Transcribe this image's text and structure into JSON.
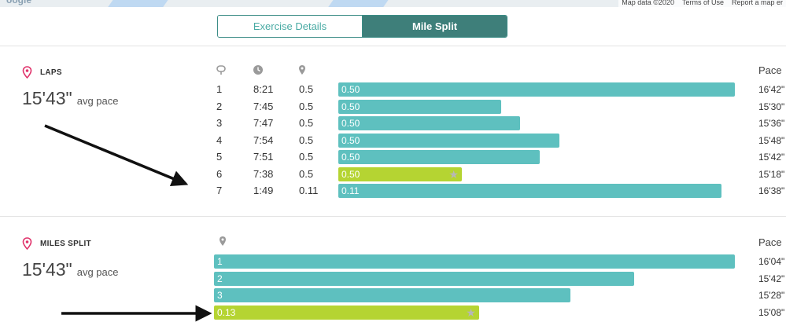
{
  "map": {
    "logo": "oogle",
    "attribution": [
      "Map data ©2020",
      "Terms of Use",
      "Report a map er"
    ]
  },
  "tabs": [
    {
      "label": "Exercise Details",
      "active": false
    },
    {
      "label": "Mile Split",
      "active": true
    }
  ],
  "laps": {
    "title": "LAPS",
    "avg_value": "15'43\"",
    "avg_label": "avg pace",
    "pace_header": "Pace",
    "column_icons": [
      "lap-icon",
      "clock-icon",
      "pin-icon"
    ],
    "rows": [
      {
        "lap": "1",
        "time": "8:21",
        "distance": "0.5",
        "bar_label": "0.50",
        "pace": "16'42\"",
        "pace_seconds": 1002,
        "best": false
      },
      {
        "lap": "2",
        "time": "7:45",
        "distance": "0.5",
        "bar_label": "0.50",
        "pace": "15'30\"",
        "pace_seconds": 930,
        "best": false
      },
      {
        "lap": "3",
        "time": "7:47",
        "distance": "0.5",
        "bar_label": "0.50",
        "pace": "15'36\"",
        "pace_seconds": 936,
        "best": false
      },
      {
        "lap": "4",
        "time": "7:54",
        "distance": "0.5",
        "bar_label": "0.50",
        "pace": "15'48\"",
        "pace_seconds": 948,
        "best": false
      },
      {
        "lap": "5",
        "time": "7:51",
        "distance": "0.5",
        "bar_label": "0.50",
        "pace": "15'42\"",
        "pace_seconds": 942,
        "best": false
      },
      {
        "lap": "6",
        "time": "7:38",
        "distance": "0.5",
        "bar_label": "0.50",
        "pace": "15'18\"",
        "pace_seconds": 918,
        "best": true
      },
      {
        "lap": "7",
        "time": "1:49",
        "distance": "0.11",
        "bar_label": "0.11",
        "pace": "16'38\"",
        "pace_seconds": 998,
        "best": false
      }
    ]
  },
  "miles": {
    "title": "MILES SPLIT",
    "avg_value": "15'43\"",
    "avg_label": "avg pace",
    "pace_header": "Pace",
    "column_icons": [
      "pin-icon"
    ],
    "rows": [
      {
        "bar_label": "1",
        "pace": "16'04\"",
        "pace_seconds": 964,
        "best": false
      },
      {
        "bar_label": "2",
        "pace": "15'42\"",
        "pace_seconds": 942,
        "best": false
      },
      {
        "bar_label": "3",
        "pace": "15'28\"",
        "pace_seconds": 928,
        "best": false
      },
      {
        "bar_label": "0.13",
        "pace": "15'08\"",
        "pace_seconds": 908,
        "best": true
      }
    ]
  },
  "colors": {
    "bar": "#5ec0bf",
    "best_bar": "#b5d432",
    "accent": "#e0336b",
    "tab_active": "#3e7f7a"
  }
}
